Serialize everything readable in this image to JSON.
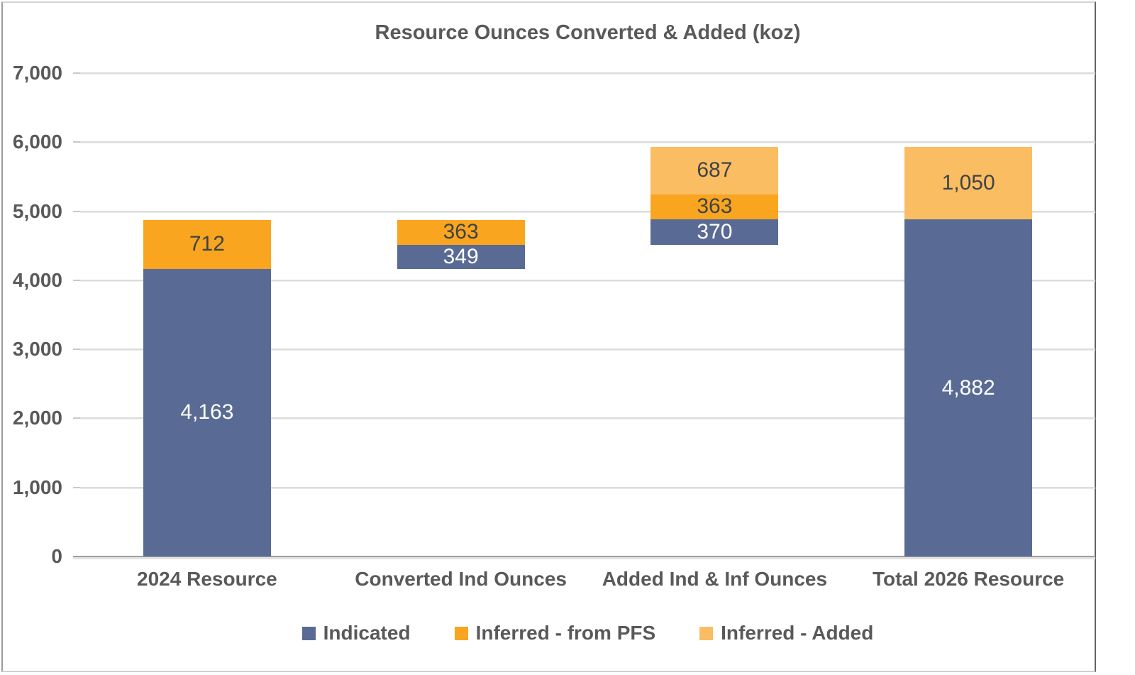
{
  "chart_data": {
    "type": "bar",
    "variant": "stacked-waterfall",
    "title": "Resource Ounces Converted & Added (koz)",
    "ylim": [
      0,
      7000
    ],
    "ytick_interval": 1000,
    "yticks": [
      {
        "value": 0,
        "label": "0"
      },
      {
        "value": 1000,
        "label": "1,000"
      },
      {
        "value": 2000,
        "label": "2,000"
      },
      {
        "value": 3000,
        "label": "3,000"
      },
      {
        "value": 4000,
        "label": "4,000"
      },
      {
        "value": 5000,
        "label": "5,000"
      },
      {
        "value": 6000,
        "label": "6,000"
      },
      {
        "value": 7000,
        "label": "7,000"
      }
    ],
    "grid": true,
    "legend_position": "bottom",
    "series": [
      {
        "name": "Indicated",
        "color": "#596B94",
        "label_color": "#FFFFFF"
      },
      {
        "name": "Inferred - from PFS",
        "color": "#F9A51F",
        "label_color": "#3F4347"
      },
      {
        "name": "Inferred - Added",
        "color": "#FABD62",
        "label_color": "#3F4347"
      }
    ],
    "categories": [
      "2024 Resource",
      "Converted Ind Ounces",
      "Added Ind & Inf Ounces",
      "Total 2026 Resource"
    ],
    "bars": [
      {
        "category": "2024 Resource",
        "base": 0,
        "segments": [
          {
            "series": "Indicated",
            "value": 4163,
            "label": "4,163"
          },
          {
            "series": "Inferred - from PFS",
            "value": 712,
            "label": "712"
          }
        ]
      },
      {
        "category": "Converted Ind Ounces",
        "base": 4163,
        "segments": [
          {
            "series": "Indicated",
            "value": 349,
            "label": "349"
          },
          {
            "series": "Inferred - from PFS",
            "value": 363,
            "label": "363"
          }
        ]
      },
      {
        "category": "Added Ind & Inf Ounces",
        "base": 4512,
        "segments": [
          {
            "series": "Indicated",
            "value": 370,
            "label": "370"
          },
          {
            "series": "Inferred - from PFS",
            "value": 363,
            "label": "363"
          },
          {
            "series": "Inferred - Added",
            "value": 687,
            "label": "687"
          }
        ]
      },
      {
        "category": "Total 2026 Resource",
        "base": 0,
        "segments": [
          {
            "series": "Indicated",
            "value": 4882,
            "label": "4,882"
          },
          {
            "series": "Inferred - Added",
            "value": 1050,
            "label": "1,050"
          }
        ]
      }
    ]
  },
  "colors": {
    "text": "#595959",
    "gridline": "#DCDCDC",
    "axis_line": "#9E9E9E",
    "background": "#FFFFFF"
  }
}
